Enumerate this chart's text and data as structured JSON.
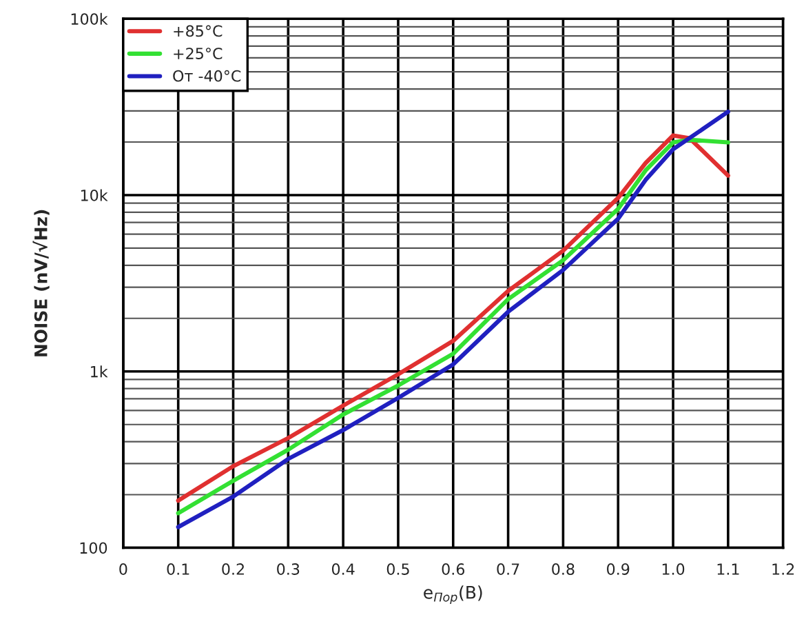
{
  "chart_data": {
    "type": "line",
    "xlabel": "e$_{Пор}$(В)",
    "ylabel": "NOISE (nV/√Hz)",
    "log": "y",
    "grid": true,
    "legend": "top left",
    "marker": "none",
    "line_style": "solid",
    "xlim": [
      0,
      1.2
    ],
    "xticks": [
      0,
      0.1,
      0.2,
      0.3,
      0.4,
      0.5,
      0.6,
      0.7,
      0.8,
      0.9,
      {
        "value": 1,
        "label": "1.0"
      },
      1.1,
      1.2
    ],
    "ylim": [
      100,
      100000
    ],
    "yticks": [
      100,
      {
        "value": 1000,
        "label": "1k"
      },
      {
        "value": 10000,
        "label": "10k"
      },
      {
        "value": 100000,
        "label": "100k"
      }
    ],
    "series": [
      {
        "name": "+85°C",
        "color": "#e03030",
        "x": [
          0.1,
          0.2,
          0.3,
          0.4,
          0.5,
          0.6,
          0.7,
          0.8,
          0.9,
          0.95,
          1.0,
          1.03,
          1.1
        ],
        "values": [
          185,
          290,
          419,
          640,
          963,
          1490,
          2860,
          4840,
          9640,
          15200,
          21800,
          21000,
          12900
        ]
      },
      {
        "name": "+25°C",
        "color": "#33e033",
        "x": [
          0.1,
          0.2,
          0.3,
          0.4,
          0.5,
          0.6,
          0.7,
          0.8,
          0.9,
          0.95,
          1.0,
          1.03,
          1.1
        ],
        "values": [
          157,
          240,
          360,
          570,
          832,
          1260,
          2570,
          4270,
          8350,
          13800,
          19900,
          20600,
          19900
        ]
      },
      {
        "name": "От -40°C",
        "color": "#2020c0",
        "x": [
          0.1,
          0.2,
          0.3,
          0.4,
          0.5,
          0.6,
          0.7,
          0.8,
          0.9,
          0.95,
          1.0,
          1.1
        ],
        "values": [
          131,
          195,
          319,
          465,
          708,
          1096,
          2180,
          3760,
          7350,
          12200,
          18200,
          29700
        ]
      }
    ]
  }
}
